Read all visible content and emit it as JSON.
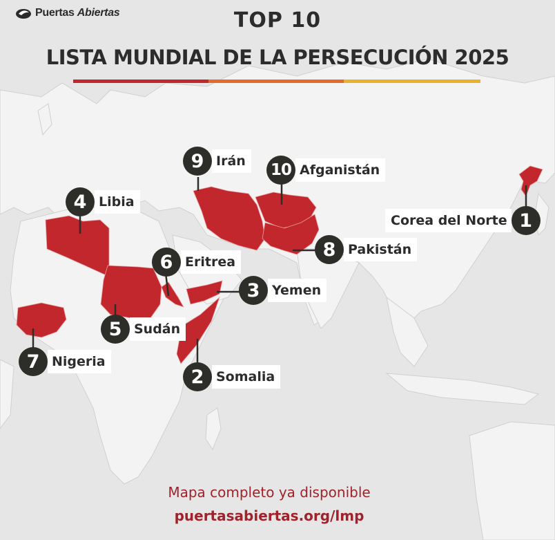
{
  "brand": {
    "name_regular": "Puertas",
    "name_italic": "Abiertas",
    "logo_icon": "dove-icon"
  },
  "header": {
    "top": "TOP 10",
    "title": "LISTA MUNDIAL DE LA PERSECUCIÓN 2025"
  },
  "colors": {
    "accent_red": "#c1272d",
    "bar_red": "#c1272d",
    "bar_orange": "#e36b2c",
    "bar_yellow": "#eab22a",
    "badge_dark": "#2d2e2a",
    "land": "#f3f3f3",
    "sea": "#e6e6e6",
    "footer_red": "#a0222a"
  },
  "rankings": [
    {
      "rank": "1",
      "country": "Corea del Norte"
    },
    {
      "rank": "2",
      "country": "Somalia"
    },
    {
      "rank": "3",
      "country": "Yemen"
    },
    {
      "rank": "4",
      "country": "Libia"
    },
    {
      "rank": "5",
      "country": "Sudán"
    },
    {
      "rank": "6",
      "country": "Eritrea"
    },
    {
      "rank": "7",
      "country": "Nigeria"
    },
    {
      "rank": "8",
      "country": "Pakistán"
    },
    {
      "rank": "9",
      "country": "Irán"
    },
    {
      "rank": "10",
      "country": "Afganistán"
    }
  ],
  "footer": {
    "line1": "Mapa completo ya disponible",
    "line2": "puertasabiertas.org/lmp"
  }
}
